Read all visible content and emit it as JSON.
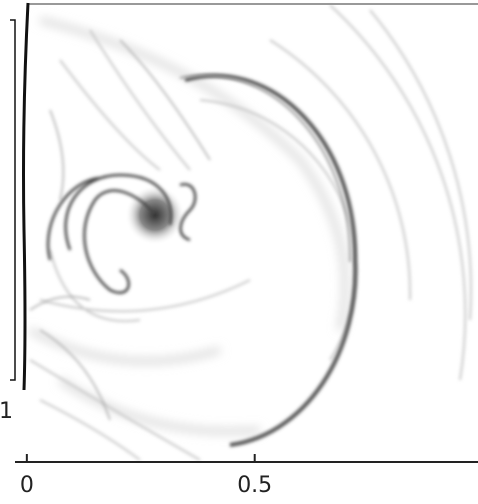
{
  "chart_data": {
    "type": "field",
    "xlim": [
      -0.026,
      0.99
    ],
    "xticks": [
      0,
      0.5
    ],
    "side_text": "1"
  }
}
